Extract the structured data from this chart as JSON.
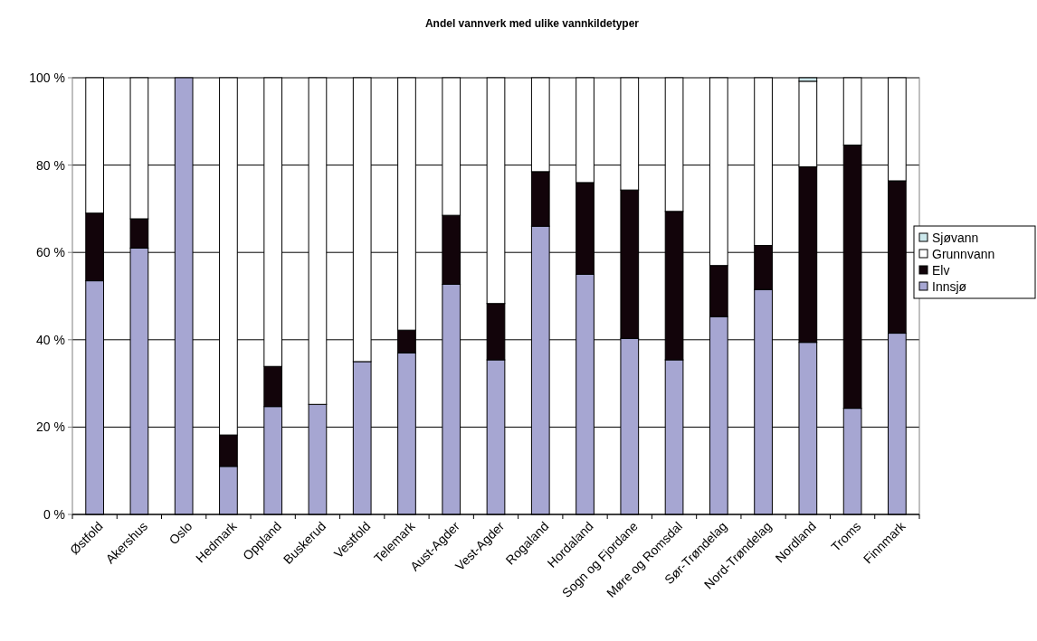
{
  "chart_data": {
    "type": "bar",
    "title": "Andel vannverk med ulike vannkildetyper",
    "stacked": true,
    "categories": [
      "Østfold",
      "Akershus",
      "Oslo",
      "Hedmark",
      "Oppland",
      "Buskerud",
      "Vestfold",
      "Telemark",
      "Aust-Agder",
      "Vest-Agder",
      "Rogaland",
      "Hordaland",
      "Sogn og Fjordane",
      "Møre og Romsdal",
      "Sør-Trøndelag",
      "Nord-Trøndelag",
      "Nordland",
      "Troms",
      "Finnmark"
    ],
    "series": [
      {
        "name": "Innsjø",
        "color": "#a6a6d2",
        "values": [
          53.5,
          61,
          100,
          11,
          24.7,
          25.2,
          35,
          37,
          52.7,
          35.4,
          66,
          55,
          40.3,
          35.4,
          45.3,
          51.5,
          39.4,
          24.3,
          41.5
        ]
      },
      {
        "name": "Elv",
        "color": "#12040a",
        "values": [
          15.5,
          6.7,
          0,
          7.2,
          9.2,
          0,
          0,
          5.2,
          15.8,
          12.9,
          12.5,
          21,
          34,
          34,
          11.7,
          10.1,
          40.2,
          60.3,
          34.9
        ]
      },
      {
        "name": "Grunnvann",
        "color": "#ffffff",
        "values": [
          31,
          32.3,
          0,
          81.8,
          66.1,
          74.8,
          65,
          57.8,
          31.5,
          51.7,
          21.5,
          24,
          25.7,
          30.6,
          43,
          38.4,
          19.6,
          15.4,
          23.6
        ]
      },
      {
        "name": "Sjøvann",
        "color": "#cce8ec",
        "values": [
          0,
          0,
          0,
          0,
          0,
          0,
          0,
          0,
          0,
          0,
          0,
          0,
          0,
          0,
          0,
          0,
          0.8,
          0,
          0
        ]
      }
    ],
    "ylim": [
      0,
      100
    ],
    "yticks": [
      {
        "value": 0,
        "label": "0 %"
      },
      {
        "value": 20,
        "label": "20 %"
      },
      {
        "value": 40,
        "label": "40 %"
      },
      {
        "value": 60,
        "label": "60 %"
      },
      {
        "value": 80,
        "label": "80 %"
      },
      {
        "value": 100,
        "label": "100 %"
      }
    ],
    "grid": "y",
    "legend": "right"
  }
}
